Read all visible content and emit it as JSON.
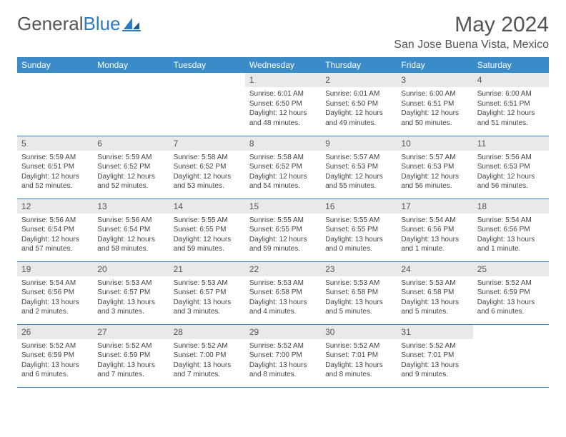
{
  "logo": {
    "text_gray": "General",
    "text_blue": "Blue"
  },
  "title": "May 2024",
  "location": "San Jose Buena Vista, Mexico",
  "colors": {
    "header_bg": "#3b8bc8",
    "header_text": "#ffffff",
    "daynum_bg": "#e9e9e9",
    "rule": "#2e7bc0"
  },
  "weekdays": [
    "Sunday",
    "Monday",
    "Tuesday",
    "Wednesday",
    "Thursday",
    "Friday",
    "Saturday"
  ],
  "weeks": [
    [
      null,
      null,
      null,
      {
        "n": "1",
        "sr": "6:01 AM",
        "ss": "6:50 PM",
        "dl": "12 hours and 48 minutes."
      },
      {
        "n": "2",
        "sr": "6:01 AM",
        "ss": "6:50 PM",
        "dl": "12 hours and 49 minutes."
      },
      {
        "n": "3",
        "sr": "6:00 AM",
        "ss": "6:51 PM",
        "dl": "12 hours and 50 minutes."
      },
      {
        "n": "4",
        "sr": "6:00 AM",
        "ss": "6:51 PM",
        "dl": "12 hours and 51 minutes."
      }
    ],
    [
      {
        "n": "5",
        "sr": "5:59 AM",
        "ss": "6:51 PM",
        "dl": "12 hours and 52 minutes."
      },
      {
        "n": "6",
        "sr": "5:59 AM",
        "ss": "6:52 PM",
        "dl": "12 hours and 52 minutes."
      },
      {
        "n": "7",
        "sr": "5:58 AM",
        "ss": "6:52 PM",
        "dl": "12 hours and 53 minutes."
      },
      {
        "n": "8",
        "sr": "5:58 AM",
        "ss": "6:52 PM",
        "dl": "12 hours and 54 minutes."
      },
      {
        "n": "9",
        "sr": "5:57 AM",
        "ss": "6:53 PM",
        "dl": "12 hours and 55 minutes."
      },
      {
        "n": "10",
        "sr": "5:57 AM",
        "ss": "6:53 PM",
        "dl": "12 hours and 56 minutes."
      },
      {
        "n": "11",
        "sr": "5:56 AM",
        "ss": "6:53 PM",
        "dl": "12 hours and 56 minutes."
      }
    ],
    [
      {
        "n": "12",
        "sr": "5:56 AM",
        "ss": "6:54 PM",
        "dl": "12 hours and 57 minutes."
      },
      {
        "n": "13",
        "sr": "5:56 AM",
        "ss": "6:54 PM",
        "dl": "12 hours and 58 minutes."
      },
      {
        "n": "14",
        "sr": "5:55 AM",
        "ss": "6:55 PM",
        "dl": "12 hours and 59 minutes."
      },
      {
        "n": "15",
        "sr": "5:55 AM",
        "ss": "6:55 PM",
        "dl": "12 hours and 59 minutes."
      },
      {
        "n": "16",
        "sr": "5:55 AM",
        "ss": "6:55 PM",
        "dl": "13 hours and 0 minutes."
      },
      {
        "n": "17",
        "sr": "5:54 AM",
        "ss": "6:56 PM",
        "dl": "13 hours and 1 minute."
      },
      {
        "n": "18",
        "sr": "5:54 AM",
        "ss": "6:56 PM",
        "dl": "13 hours and 1 minute."
      }
    ],
    [
      {
        "n": "19",
        "sr": "5:54 AM",
        "ss": "6:56 PM",
        "dl": "13 hours and 2 minutes."
      },
      {
        "n": "20",
        "sr": "5:53 AM",
        "ss": "6:57 PM",
        "dl": "13 hours and 3 minutes."
      },
      {
        "n": "21",
        "sr": "5:53 AM",
        "ss": "6:57 PM",
        "dl": "13 hours and 3 minutes."
      },
      {
        "n": "22",
        "sr": "5:53 AM",
        "ss": "6:58 PM",
        "dl": "13 hours and 4 minutes."
      },
      {
        "n": "23",
        "sr": "5:53 AM",
        "ss": "6:58 PM",
        "dl": "13 hours and 5 minutes."
      },
      {
        "n": "24",
        "sr": "5:53 AM",
        "ss": "6:58 PM",
        "dl": "13 hours and 5 minutes."
      },
      {
        "n": "25",
        "sr": "5:52 AM",
        "ss": "6:59 PM",
        "dl": "13 hours and 6 minutes."
      }
    ],
    [
      {
        "n": "26",
        "sr": "5:52 AM",
        "ss": "6:59 PM",
        "dl": "13 hours and 6 minutes."
      },
      {
        "n": "27",
        "sr": "5:52 AM",
        "ss": "6:59 PM",
        "dl": "13 hours and 7 minutes."
      },
      {
        "n": "28",
        "sr": "5:52 AM",
        "ss": "7:00 PM",
        "dl": "13 hours and 7 minutes."
      },
      {
        "n": "29",
        "sr": "5:52 AM",
        "ss": "7:00 PM",
        "dl": "13 hours and 8 minutes."
      },
      {
        "n": "30",
        "sr": "5:52 AM",
        "ss": "7:01 PM",
        "dl": "13 hours and 8 minutes."
      },
      {
        "n": "31",
        "sr": "5:52 AM",
        "ss": "7:01 PM",
        "dl": "13 hours and 9 minutes."
      },
      null
    ]
  ]
}
